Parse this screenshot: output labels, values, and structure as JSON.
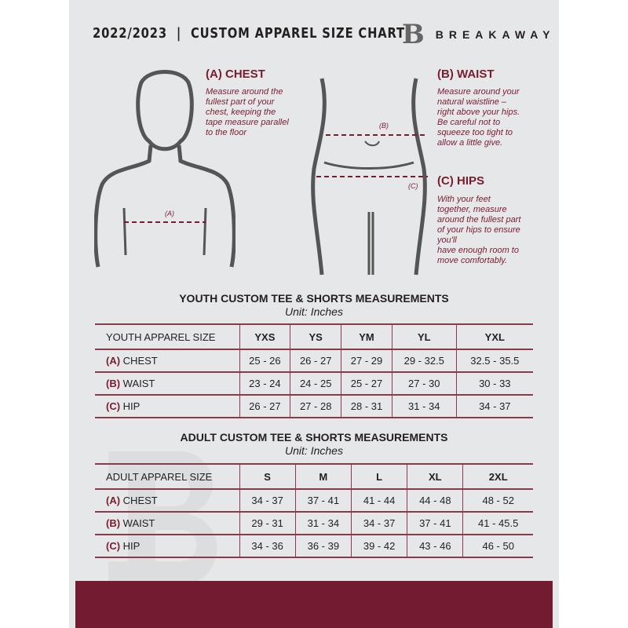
{
  "header": {
    "title": "2022/2023  |  CUSTOM APPAREL SIZE CHART",
    "logo_text": "BREAKAWAY",
    "logo_mark": "B"
  },
  "measures": {
    "chest": {
      "title": "(A) CHEST",
      "tag": "(A)",
      "lines": [
        "Measure around the",
        "fullest part of your",
        "chest, keeping the",
        "tape measure parallel",
        "to the floor"
      ]
    },
    "waist": {
      "title": "(B) WAIST",
      "tag": "(B)",
      "lines": [
        "Measure around your",
        "natural waistline –",
        "right above your hips.",
        "Be careful not to",
        "squeeze too tight to",
        "allow a little give."
      ]
    },
    "hips": {
      "title": "(C) HIPS",
      "tag": "(C)",
      "lines": [
        "With your feet",
        "together, measure",
        "around the fullest part",
        "of your hips to ensure",
        "you'll",
        "have enough room to",
        "move comfortably."
      ]
    }
  },
  "youth": {
    "title": "YOUTH CUSTOM TEE & SHORTS MEASUREMENTS",
    "unit": "Unit: Inches",
    "header": [
      "YOUTH APPAREL SIZE",
      "YXS",
      "YS",
      "YM",
      "YL",
      "YXL"
    ],
    "rows": [
      {
        "tag": "(A)",
        "name": "CHEST",
        "values": [
          "25 - 26",
          "26 - 27",
          "27 - 29",
          "29 - 32.5",
          "32.5 - 35.5"
        ]
      },
      {
        "tag": "(B)",
        "name": "WAIST",
        "values": [
          "23 - 24",
          "24 - 25",
          "25 - 27",
          "27 - 30",
          "30 - 33"
        ]
      },
      {
        "tag": "(C)",
        "name": "HIP",
        "values": [
          "26 - 27",
          "27 - 28",
          "28 - 31",
          "31 - 34",
          "34 - 37"
        ]
      }
    ]
  },
  "adult": {
    "title": "ADULT CUSTOM TEE & SHORTS MEASUREMENTS",
    "unit": "Unit: Inches",
    "header": [
      "ADULT APPAREL SIZE",
      "S",
      "M",
      "L",
      "XL",
      "2XL"
    ],
    "rows": [
      {
        "tag": "(A)",
        "name": "CHEST",
        "values": [
          "34 - 37",
          "37 - 41",
          "41 - 44",
          "44 - 48",
          "48 - 52"
        ]
      },
      {
        "tag": "(B)",
        "name": "WAIST",
        "values": [
          "29 - 31",
          "31 - 34",
          "34 - 37",
          "37 - 41",
          "41 - 45.5"
        ]
      },
      {
        "tag": "(C)",
        "name": "HIP",
        "values": [
          "34 - 36",
          "36 - 39",
          "39 - 42",
          "43 - 46",
          "46 - 50"
        ]
      }
    ]
  },
  "colors": {
    "accent": "#731b31",
    "panel": "#e6e7e8"
  }
}
